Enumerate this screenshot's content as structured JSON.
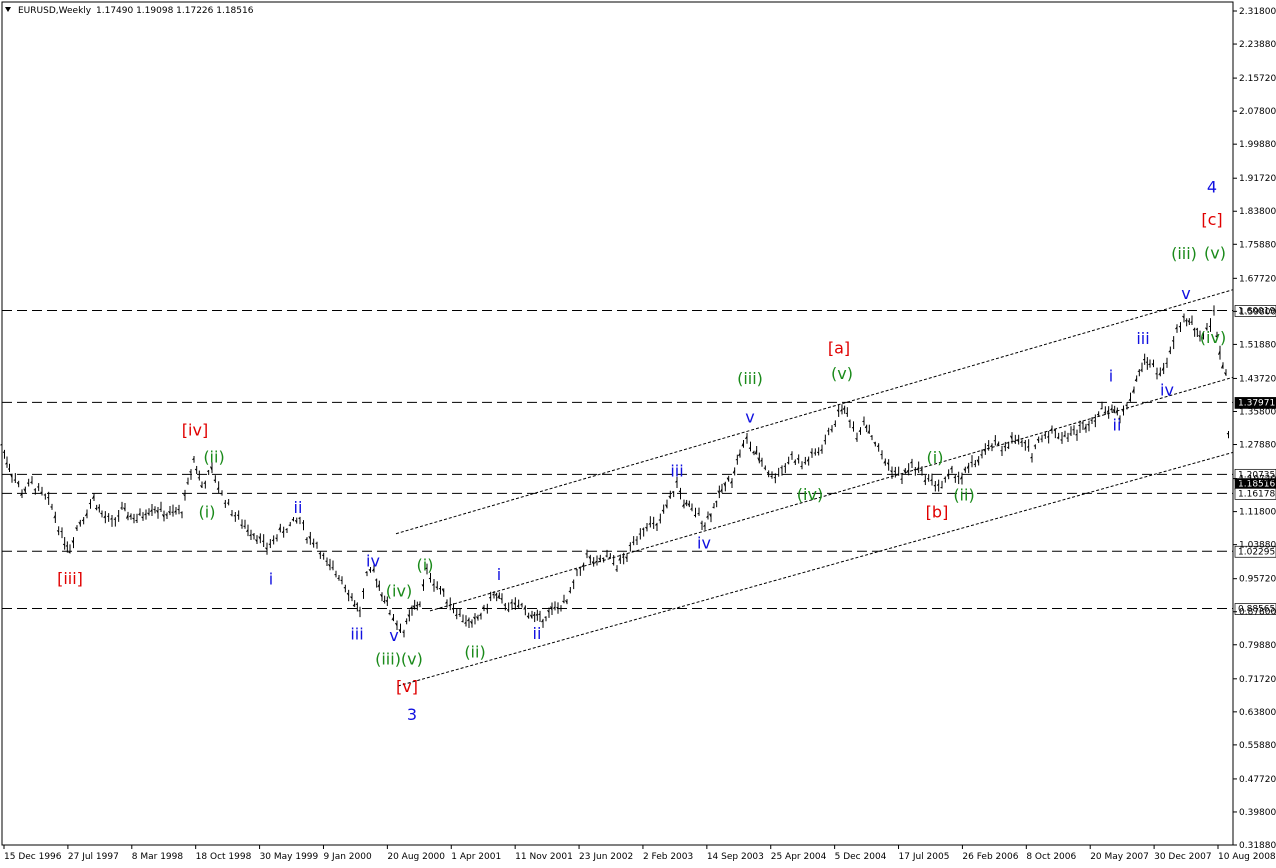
{
  "chart_data": {
    "type": "line",
    "title": "EURUSD,Weekly",
    "ohlc": "1.17490 1.19098 1.17226 1.18516",
    "ylim": [
      0.3188,
      2.3396
    ],
    "y_ticks": [
      "2.31800",
      "2.23880",
      "2.15720",
      "2.07800",
      "1.99880",
      "1.91720",
      "1.83800",
      "1.75880",
      "1.67720",
      "1.59800",
      "1.51880",
      "1.43720",
      "1.35800",
      "1.27880",
      "1.19720",
      "1.11800",
      "1.03880",
      "0.95720",
      "0.87800",
      "0.79880",
      "0.71720",
      "0.63800",
      "0.55880",
      "0.47720",
      "0.39800",
      "0.31880"
    ],
    "x_ticks": [
      "15 Dec 1996",
      "27 Jul 1997",
      "8 Mar 1998",
      "18 Oct 1998",
      "30 May 1999",
      "9 Jan 2000",
      "20 Aug 2000",
      "1 Apr 2001",
      "11 Nov 2001",
      "23 Jun 2002",
      "2 Feb 2003",
      "14 Sep 2003",
      "25 Apr 2004",
      "5 Dec 2004",
      "17 Jul 2005",
      "26 Feb 2006",
      "8 Oct 2006",
      "20 May 2007",
      "30 Dec 2007",
      "10 Aug 2008"
    ],
    "series": [
      {
        "values": [
          [
            0,
            1.28
          ],
          [
            5,
            1.24
          ],
          [
            10,
            1.21
          ],
          [
            20,
            1.165
          ],
          [
            30,
            1.185
          ],
          [
            40,
            1.16
          ],
          [
            50,
            1.13
          ],
          [
            60,
            1.06
          ],
          [
            68,
            1.03
          ],
          [
            75,
            1.08
          ],
          [
            85,
            1.12
          ],
          [
            92,
            1.15
          ],
          [
            100,
            1.11
          ],
          [
            110,
            1.09
          ],
          [
            120,
            1.12
          ],
          [
            135,
            1.1
          ],
          [
            150,
            1.13
          ],
          [
            165,
            1.11
          ],
          [
            180,
            1.12
          ],
          [
            192,
            1.245
          ],
          [
            200,
            1.18
          ],
          [
            210,
            1.215
          ],
          [
            220,
            1.16
          ],
          [
            230,
            1.12
          ],
          [
            240,
            1.09
          ],
          [
            255,
            1.06
          ],
          [
            265,
            1.03
          ],
          [
            275,
            1.06
          ],
          [
            285,
            1.08
          ],
          [
            298,
            1.1
          ],
          [
            305,
            1.06
          ],
          [
            315,
            1.04
          ],
          [
            325,
            0.99
          ],
          [
            340,
            0.96
          ],
          [
            350,
            0.91
          ],
          [
            358,
            0.88
          ],
          [
            365,
            0.96
          ],
          [
            372,
            0.975
          ],
          [
            380,
            0.925
          ],
          [
            388,
            0.88
          ],
          [
            395,
            0.85
          ],
          [
            402,
            0.83
          ],
          [
            410,
            0.88
          ],
          [
            418,
            0.9
          ],
          [
            425,
            0.975
          ],
          [
            432,
            0.95
          ],
          [
            445,
            0.91
          ],
          [
            458,
            0.87
          ],
          [
            470,
            0.845
          ],
          [
            482,
            0.88
          ],
          [
            492,
            0.92
          ],
          [
            500,
            0.9
          ],
          [
            510,
            0.89
          ],
          [
            520,
            0.89
          ],
          [
            530,
            0.87
          ],
          [
            538,
            0.86
          ],
          [
            550,
            0.88
          ],
          [
            565,
            0.9
          ],
          [
            575,
            0.965
          ],
          [
            585,
            1.01
          ],
          [
            595,
            0.99
          ],
          [
            605,
            1.01
          ],
          [
            615,
            0.99
          ],
          [
            625,
            1.01
          ],
          [
            635,
            1.06
          ],
          [
            645,
            1.09
          ],
          [
            655,
            1.08
          ],
          [
            665,
            1.13
          ],
          [
            675,
            1.185
          ],
          [
            682,
            1.14
          ],
          [
            690,
            1.12
          ],
          [
            697,
            1.11
          ],
          [
            703,
            1.09
          ],
          [
            712,
            1.13
          ],
          [
            720,
            1.17
          ],
          [
            730,
            1.2
          ],
          [
            738,
            1.26
          ],
          [
            745,
            1.29
          ],
          [
            752,
            1.26
          ],
          [
            760,
            1.24
          ],
          [
            770,
            1.2
          ],
          [
            780,
            1.22
          ],
          [
            790,
            1.25
          ],
          [
            800,
            1.23
          ],
          [
            810,
            1.25
          ],
          [
            820,
            1.27
          ],
          [
            830,
            1.32
          ],
          [
            840,
            1.37
          ],
          [
            848,
            1.34
          ],
          [
            855,
            1.3
          ],
          [
            862,
            1.34
          ],
          [
            870,
            1.3
          ],
          [
            880,
            1.25
          ],
          [
            890,
            1.22
          ],
          [
            900,
            1.2
          ],
          [
            910,
            1.23
          ],
          [
            920,
            1.21
          ],
          [
            930,
            1.19
          ],
          [
            940,
            1.18
          ],
          [
            950,
            1.21
          ],
          [
            960,
            1.2
          ],
          [
            970,
            1.23
          ],
          [
            980,
            1.25
          ],
          [
            990,
            1.28
          ],
          [
            1000,
            1.27
          ],
          [
            1010,
            1.29
          ],
          [
            1020,
            1.28
          ],
          [
            1030,
            1.26
          ],
          [
            1040,
            1.3
          ],
          [
            1050,
            1.31
          ],
          [
            1060,
            1.3
          ],
          [
            1075,
            1.31
          ],
          [
            1090,
            1.34
          ],
          [
            1100,
            1.36
          ],
          [
            1110,
            1.37
          ],
          [
            1118,
            1.34
          ],
          [
            1125,
            1.38
          ],
          [
            1132,
            1.41
          ],
          [
            1140,
            1.47
          ],
          [
            1148,
            1.48
          ],
          [
            1155,
            1.45
          ],
          [
            1165,
            1.47
          ],
          [
            1175,
            1.55
          ],
          [
            1182,
            1.58
          ],
          [
            1190,
            1.57
          ],
          [
            1198,
            1.53
          ],
          [
            1205,
            1.56
          ],
          [
            1212,
            1.59
          ],
          [
            1218,
            1.5
          ],
          [
            1224,
            1.44
          ],
          [
            1229,
            1.185
          ]
        ]
      }
    ],
    "price_levels": [
      {
        "value": 1.60019,
        "label": "1.60019",
        "dashed": true,
        "boxed": false
      },
      {
        "value": 1.37971,
        "label": "1.37971",
        "dashed": true,
        "boxed": true
      },
      {
        "value": 1.20735,
        "label": "1.20735",
        "dashed": true,
        "boxed": false
      },
      {
        "value": 1.18516,
        "label": "1.18516",
        "dashed": false,
        "boxed": true
      },
      {
        "value": 1.16178,
        "label": "1.16178",
        "dashed": true,
        "boxed": false
      },
      {
        "value": 1.02295,
        "label": "1.02295",
        "dashed": true,
        "boxed": false
      },
      {
        "value": 0.88565,
        "label": "0.88565",
        "dashed": true,
        "boxed": false
      }
    ],
    "wave_labels": [
      {
        "text": "[iv]",
        "color": "#e00000",
        "x": 195,
        "y": 1.3
      },
      {
        "text": "(ii)",
        "color": "#1a8a1a",
        "x": 214,
        "y": 1.236
      },
      {
        "text": "(i)",
        "color": "#1a8a1a",
        "x": 207,
        "y": 1.104
      },
      {
        "text": "[iii]",
        "color": "#e00000",
        "x": 70,
        "y": 0.944
      },
      {
        "text": "ii",
        "color": "#1010e0",
        "x": 298,
        "y": 1.115
      },
      {
        "text": "i",
        "color": "#1010e0",
        "x": 271,
        "y": 0.943
      },
      {
        "text": "iii",
        "color": "#1010e0",
        "x": 357,
        "y": 0.811
      },
      {
        "text": "iv",
        "color": "#1010e0",
        "x": 373,
        "y": 0.986
      },
      {
        "text": "(iv)",
        "color": "#1a8a1a",
        "x": 399,
        "y": 0.915
      },
      {
        "text": "(i)",
        "color": "#1a8a1a",
        "x": 425,
        "y": 0.977
      },
      {
        "text": "v",
        "color": "#1010e0",
        "x": 394,
        "y": 0.808
      },
      {
        "text": "(iii)(v)",
        "color": "#1a8a1a",
        "x": 399,
        "y": 0.751
      },
      {
        "text": "[v]",
        "color": "#e00000",
        "x": 407,
        "y": 0.686
      },
      {
        "text": "3",
        "color": "#1010e0",
        "x": 412,
        "y": 0.618,
        "big": true
      },
      {
        "text": "(ii)",
        "color": "#1a8a1a",
        "x": 475,
        "y": 0.768
      },
      {
        "text": "i",
        "color": "#1010e0",
        "x": 499,
        "y": 0.954
      },
      {
        "text": "ii",
        "color": "#1010e0",
        "x": 537,
        "y": 0.813
      },
      {
        "text": "iii",
        "color": "#1010e0",
        "x": 677,
        "y": 1.202
      },
      {
        "text": "iv",
        "color": "#1010e0",
        "x": 704,
        "y": 1.03
      },
      {
        "text": "v",
        "color": "#1010e0",
        "x": 750,
        "y": 1.332
      },
      {
        "text": "(iii)",
        "color": "#1a8a1a",
        "x": 750,
        "y": 1.424
      },
      {
        "text": "(iv)",
        "color": "#1a8a1a",
        "x": 810,
        "y": 1.146
      },
      {
        "text": "[a]",
        "color": "#e00000",
        "x": 839,
        "y": 1.497
      },
      {
        "text": "(v)",
        "color": "#1a8a1a",
        "x": 842,
        "y": 1.436
      },
      {
        "text": "(i)",
        "color": "#1a8a1a",
        "x": 935,
        "y": 1.235
      },
      {
        "text": "[b]",
        "color": "#e00000",
        "x": 937,
        "y": 1.104
      },
      {
        "text": "(ii)",
        "color": "#1a8a1a",
        "x": 964,
        "y": 1.145
      },
      {
        "text": "i",
        "color": "#1010e0",
        "x": 1111,
        "y": 1.43
      },
      {
        "text": "ii",
        "color": "#1010e0",
        "x": 1117,
        "y": 1.312
      },
      {
        "text": "iii",
        "color": "#1010e0",
        "x": 1143,
        "y": 1.52
      },
      {
        "text": "iv",
        "color": "#1010e0",
        "x": 1167,
        "y": 1.396
      },
      {
        "text": "v",
        "color": "#1010e0",
        "x": 1186,
        "y": 1.628
      },
      {
        "text": "(iii)",
        "color": "#1a8a1a",
        "x": 1184,
        "y": 1.723
      },
      {
        "text": "(v)",
        "color": "#1a8a1a",
        "x": 1215,
        "y": 1.725
      },
      {
        "text": "(iv)",
        "color": "#1a8a1a",
        "x": 1213,
        "y": 1.522
      },
      {
        "text": "[c]",
        "color": "#e00000",
        "x": 1212,
        "y": 1.805
      },
      {
        "text": "4",
        "color": "#1010e0",
        "x": 1212,
        "y": 1.883,
        "big": true
      }
    ],
    "channel_lines": [
      {
        "x1": 396,
        "y1": 1.065,
        "x2": 1233,
        "y2": 1.65
      },
      {
        "x1": 398,
        "y1": 0.7,
        "x2": 1233,
        "y2": 1.26
      },
      {
        "x1": 430,
        "y1": 0.88,
        "x2": 1233,
        "y2": 1.44
      }
    ],
    "grid": false,
    "axis_color": "#000000"
  }
}
